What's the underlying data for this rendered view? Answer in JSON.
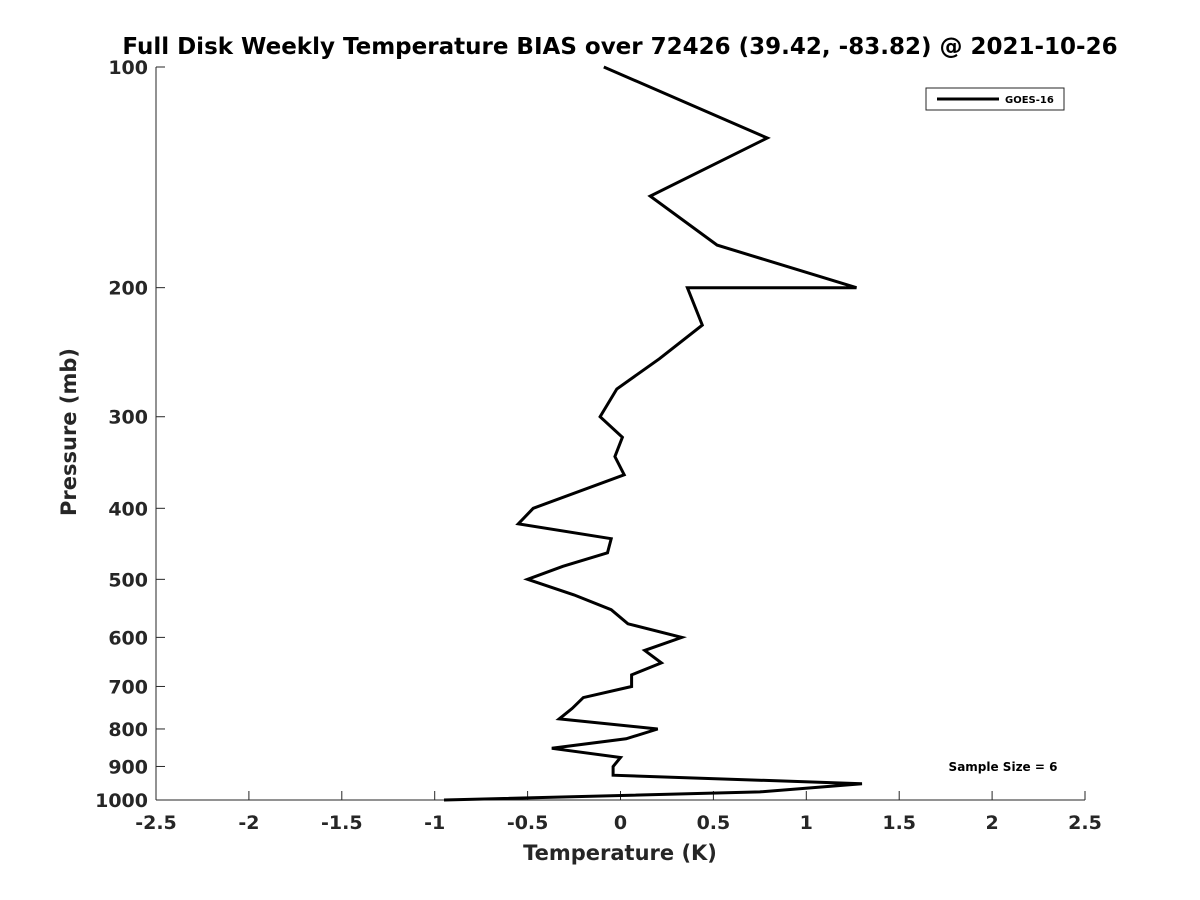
{
  "chart_data": {
    "type": "line",
    "title": "Full Disk Weekly Temperature BIAS over 72426 (39.42, -83.82) @ 2021-10-26",
    "xlabel": "Temperature (K)",
    "ylabel": "Pressure (mb)",
    "xlim": [
      -2.5,
      2.5
    ],
    "ylim": [
      100,
      1000
    ],
    "y_scale": "log",
    "y_reversed": true,
    "grid": false,
    "legend_position": "top-right",
    "x_ticks": [
      -2.5,
      -2,
      -1.5,
      -1,
      -0.5,
      0,
      0.5,
      1,
      1.5,
      2,
      2.5
    ],
    "x_tick_labels": [
      "-2.5",
      "-2",
      "-1.5",
      "-1",
      "-0.5",
      "0",
      "0.5",
      "1",
      "1.5",
      "2",
      "2.5"
    ],
    "y_ticks": [
      100,
      200,
      300,
      400,
      500,
      600,
      700,
      800,
      900,
      1000
    ],
    "y_tick_labels": [
      "100",
      "200",
      "300",
      "400",
      "500",
      "600",
      "700",
      "800",
      "900",
      "1000"
    ],
    "series": [
      {
        "name": "GOES-16",
        "color": "#000000",
        "points": [
          {
            "x": -0.09,
            "p": 100
          },
          {
            "x": 0.79,
            "p": 125
          },
          {
            "x": 0.16,
            "p": 150
          },
          {
            "x": 0.52,
            "p": 175
          },
          {
            "x": 1.27,
            "p": 200
          },
          {
            "x": 0.36,
            "p": 200
          },
          {
            "x": 0.44,
            "p": 225
          },
          {
            "x": 0.21,
            "p": 250
          },
          {
            "x": -0.02,
            "p": 275
          },
          {
            "x": -0.11,
            "p": 300
          },
          {
            "x": 0.01,
            "p": 320
          },
          {
            "x": -0.03,
            "p": 340
          },
          {
            "x": 0.02,
            "p": 360
          },
          {
            "x": -0.47,
            "p": 400
          },
          {
            "x": -0.55,
            "p": 420
          },
          {
            "x": -0.05,
            "p": 440
          },
          {
            "x": -0.07,
            "p": 460
          },
          {
            "x": -0.31,
            "p": 480
          },
          {
            "x": -0.5,
            "p": 500
          },
          {
            "x": -0.25,
            "p": 525
          },
          {
            "x": -0.05,
            "p": 550
          },
          {
            "x": 0.04,
            "p": 575
          },
          {
            "x": 0.33,
            "p": 600
          },
          {
            "x": 0.13,
            "p": 625
          },
          {
            "x": 0.22,
            "p": 650
          },
          {
            "x": 0.06,
            "p": 675
          },
          {
            "x": 0.06,
            "p": 700
          },
          {
            "x": -0.2,
            "p": 725
          },
          {
            "x": -0.26,
            "p": 750
          },
          {
            "x": -0.33,
            "p": 775
          },
          {
            "x": 0.2,
            "p": 800
          },
          {
            "x": 0.03,
            "p": 825
          },
          {
            "x": -0.37,
            "p": 850
          },
          {
            "x": 0.0,
            "p": 875
          },
          {
            "x": -0.04,
            "p": 900
          },
          {
            "x": -0.04,
            "p": 925
          },
          {
            "x": 1.3,
            "p": 950
          },
          {
            "x": 0.75,
            "p": 975
          },
          {
            "x": -0.95,
            "p": 1000
          }
        ]
      }
    ],
    "annotation": "Sample Size = 6"
  }
}
